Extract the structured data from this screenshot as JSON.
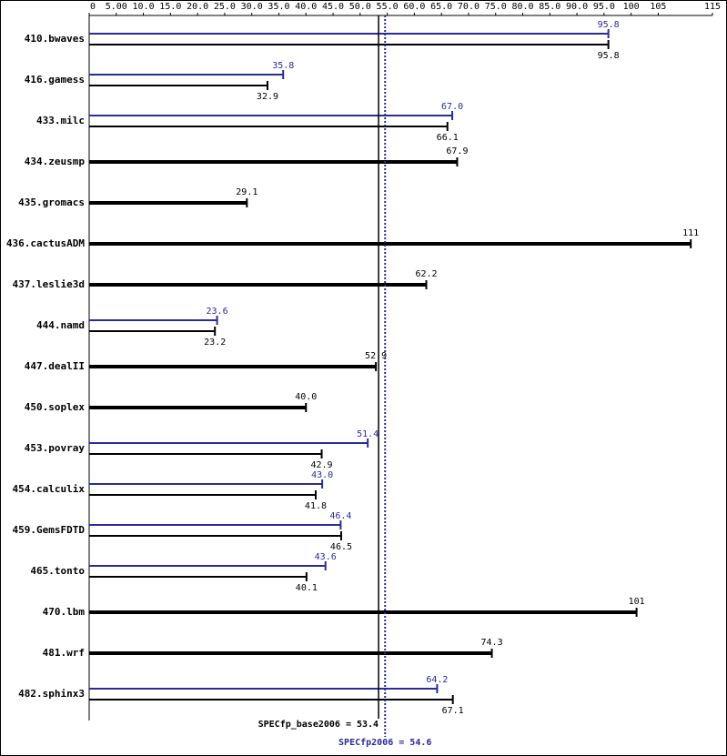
{
  "chart_data": {
    "type": "bar",
    "categories": [
      "410.bwaves",
      "416.gamess",
      "433.milc",
      "434.zeusmp",
      "435.gromacs",
      "436.cactusADM",
      "437.leslie3d",
      "444.namd",
      "447.dealII",
      "450.soplex",
      "453.povray",
      "454.calculix",
      "459.GemsFDTD",
      "465.tonto",
      "470.lbm",
      "481.wrf",
      "482.sphinx3"
    ],
    "series": [
      {
        "color": "#000000",
        "values": [
          95.8,
          32.9,
          66.1,
          67.9,
          29.1,
          111,
          62.2,
          23.2,
          52.9,
          40.0,
          42.9,
          41.8,
          46.5,
          40.1,
          101,
          74.3,
          67.1
        ],
        "value_labels": [
          "95.8",
          "32.9",
          "66.1",
          "67.9",
          "29.1",
          "111",
          "62.2",
          "23.2",
          "52.9",
          "40.0",
          "42.9",
          "41.8",
          "46.5",
          "40.1",
          "101",
          "74.3",
          "67.1"
        ]
      },
      {
        "color": "#2a2a9a",
        "values": [
          95.8,
          35.8,
          67.0,
          null,
          null,
          null,
          null,
          23.6,
          null,
          null,
          51.4,
          43.0,
          46.4,
          43.6,
          null,
          null,
          64.2
        ],
        "value_labels": [
          "95.8",
          "35.8",
          "67.0",
          null,
          null,
          null,
          null,
          "23.6",
          null,
          null,
          "51.4",
          "43.0",
          "46.4",
          "43.6",
          null,
          null,
          "64.2"
        ]
      }
    ],
    "xlim": [
      0,
      115
    ],
    "xticks": [
      0,
      {
        "value": 5,
        "label": "5.00"
      },
      {
        "value": 10,
        "label": "10.0"
      },
      {
        "value": 15,
        "label": "15.0"
      },
      {
        "value": 20,
        "label": "20.0"
      },
      {
        "value": 25,
        "label": "25.0"
      },
      {
        "value": 30,
        "label": "30.0"
      },
      {
        "value": 35,
        "label": "35.0"
      },
      {
        "value": 40,
        "label": "40.0"
      },
      {
        "value": 45,
        "label": "45.0"
      },
      {
        "value": 50,
        "label": "50.0"
      },
      {
        "value": 55,
        "label": "55.0"
      },
      {
        "value": 60,
        "label": "60.0"
      },
      {
        "value": 65,
        "label": "65.0"
      },
      {
        "value": 70,
        "label": "70.0"
      },
      {
        "value": 75,
        "label": "75.0"
      },
      {
        "value": 80,
        "label": "80.0"
      },
      {
        "value": 85,
        "label": "85.0"
      },
      {
        "value": 90,
        "label": "90.0"
      },
      {
        "value": 95,
        "label": "95.0"
      },
      100,
      105,
      115
    ],
    "reference_lines": [
      {
        "label": "SPECfp_base2006 = 53.4",
        "value": 53.4,
        "color": "#000000",
        "style": "solid"
      },
      {
        "label": "SPECfp2006 = 54.6",
        "value": 54.6,
        "color": "#2a2a9a",
        "style": "dotted"
      }
    ]
  }
}
